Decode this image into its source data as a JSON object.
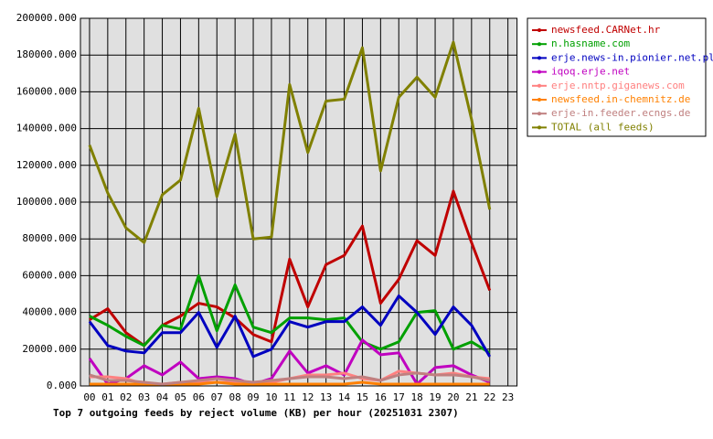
{
  "chart_data": {
    "type": "line",
    "title": "Top 7 outgoing feeds by reject volume (KB) per hour (20251031 2307)",
    "categories": [
      "00",
      "01",
      "02",
      "03",
      "04",
      "05",
      "06",
      "07",
      "08",
      "09",
      "10",
      "11",
      "12",
      "13",
      "14",
      "15",
      "16",
      "17",
      "18",
      "19",
      "20",
      "21",
      "22",
      "23"
    ],
    "ylim": [
      0,
      200000
    ],
    "yticks": [
      {
        "value": 0,
        "label": "0.000"
      },
      {
        "value": 20000,
        "label": "20000.000"
      },
      {
        "value": 40000,
        "label": "40000.000"
      },
      {
        "value": 60000,
        "label": "60000.000"
      },
      {
        "value": 80000,
        "label": "80000.000"
      },
      {
        "value": 100000,
        "label": "100000.000"
      },
      {
        "value": 120000,
        "label": "120000.000"
      },
      {
        "value": 140000,
        "label": "140000.000"
      },
      {
        "value": 160000,
        "label": "160000.000"
      },
      {
        "value": 180000,
        "label": "180000.000"
      },
      {
        "value": 200000,
        "label": "200000.000"
      }
    ],
    "grid": true,
    "legend": "right",
    "series": [
      {
        "name": "newsfeed.CARNet.hr",
        "color": "#c00000",
        "values": [
          36000,
          42000,
          29000,
          22000,
          33000,
          38000,
          45000,
          43000,
          37000,
          28000,
          24000,
          69000,
          43000,
          66000,
          71000,
          87000,
          45000,
          58000,
          79000,
          71000,
          106000,
          78000,
          52000,
          null
        ]
      },
      {
        "name": "n.hasname.com",
        "color": "#00a000",
        "values": [
          38000,
          33000,
          27000,
          22000,
          33000,
          31000,
          60000,
          30000,
          55000,
          32000,
          29000,
          37000,
          37000,
          36000,
          37000,
          24000,
          20000,
          24000,
          40000,
          41000,
          20000,
          24000,
          18000,
          null
        ]
      },
      {
        "name": "erje.news-in.pionier.net.pl",
        "color": "#0000c0",
        "values": [
          35000,
          22000,
          19000,
          18000,
          29000,
          29000,
          40000,
          21000,
          38000,
          16000,
          20000,
          35000,
          32000,
          35000,
          35000,
          43000,
          33000,
          49000,
          40000,
          28000,
          43000,
          33000,
          16000,
          null
        ]
      },
      {
        "name": "iqoq.erje.net",
        "color": "#c000c0",
        "values": [
          15000,
          1000,
          4000,
          11000,
          6000,
          13000,
          4000,
          5000,
          4000,
          1000,
          4000,
          19000,
          7000,
          11000,
          6000,
          25000,
          17000,
          18000,
          1000,
          10000,
          11000,
          6000,
          2000,
          null
        ]
      },
      {
        "name": "erje.nntp.giganews.com",
        "color": "#ff8080",
        "values": [
          5000,
          5000,
          4000,
          1000,
          1000,
          2000,
          2000,
          2000,
          2000,
          1000,
          2000,
          4000,
          6000,
          6000,
          7000,
          4000,
          3000,
          8000,
          7000,
          6000,
          7000,
          5000,
          4000,
          null
        ]
      },
      {
        "name": "newsfeed.in-chemnitz.de",
        "color": "#ff8000",
        "values": [
          1000,
          1000,
          1000,
          1000,
          1000,
          1000,
          1000,
          2000,
          1000,
          1000,
          1000,
          1000,
          1000,
          1000,
          1000,
          2000,
          1000,
          1000,
          1000,
          1000,
          1000,
          1000,
          1000,
          null
        ]
      },
      {
        "name": "erje-in.feeder.ecngs.de",
        "color": "#c08080",
        "values": [
          6000,
          3000,
          3000,
          2000,
          1000,
          2000,
          3000,
          4000,
          3000,
          2000,
          3000,
          4000,
          5000,
          5000,
          4000,
          5000,
          3000,
          6000,
          7000,
          6000,
          6000,
          5000,
          3000,
          null
        ]
      },
      {
        "name": "TOTAL (all feeds)",
        "color": "#808000",
        "values": [
          131000,
          105000,
          86000,
          78000,
          104000,
          112000,
          151000,
          103000,
          137000,
          80000,
          81000,
          164000,
          127000,
          155000,
          156000,
          184000,
          117000,
          157000,
          168000,
          157000,
          187000,
          145000,
          96000,
          null
        ]
      }
    ]
  }
}
